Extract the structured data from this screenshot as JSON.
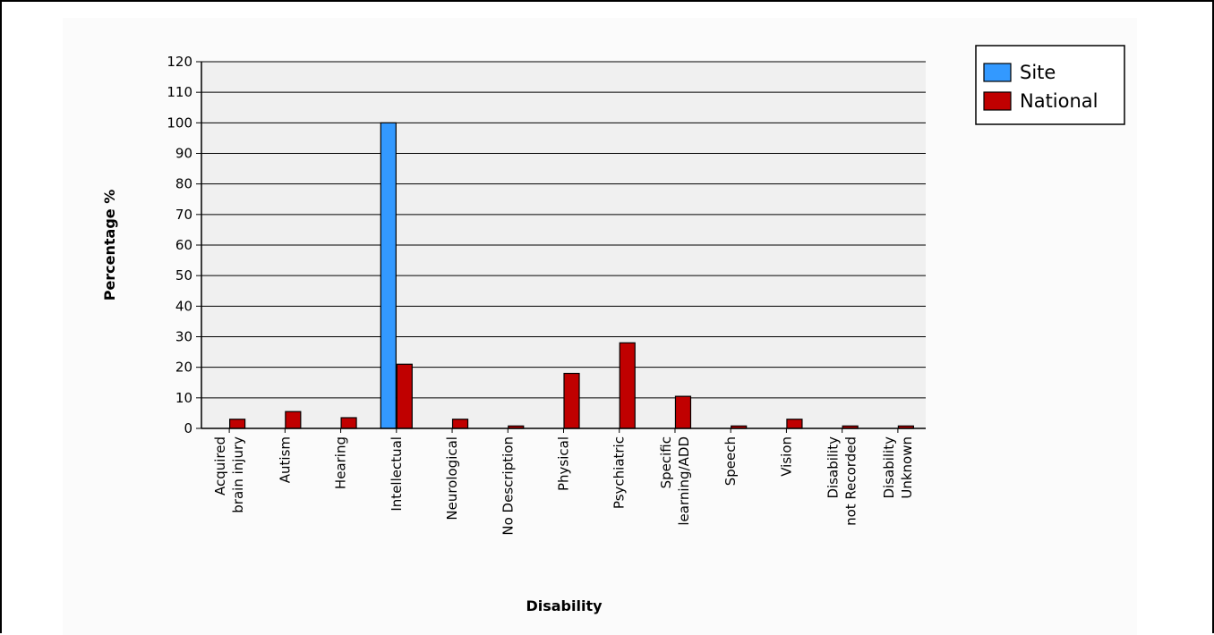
{
  "chart_data": {
    "type": "bar",
    "title": "",
    "xlabel": "Disability",
    "ylabel": "Percentage %",
    "ylim": [
      0,
      120
    ],
    "ytick_step": 10,
    "grid": true,
    "legend_position": "top-right",
    "categories": [
      [
        "Acquired",
        "brain injury"
      ],
      [
        "Autism"
      ],
      [
        "Hearing"
      ],
      [
        "Intellectual"
      ],
      [
        "Neurological"
      ],
      [
        "No Description"
      ],
      [
        "Physical"
      ],
      [
        "Psychiatric"
      ],
      [
        "Specific",
        "learning/ADD"
      ],
      [
        "Speech"
      ],
      [
        "Vision"
      ],
      [
        "Disability",
        "not Recorded"
      ],
      [
        "Disability",
        "Unknown"
      ]
    ],
    "series": [
      {
        "name": "Site",
        "color": "#3399ff",
        "values": [
          0,
          0,
          0,
          100,
          0,
          0,
          0,
          0,
          0,
          0,
          0,
          0,
          0
        ]
      },
      {
        "name": "National",
        "color": "#c00000",
        "values": [
          3,
          5.5,
          3.5,
          21,
          3,
          0.8,
          18,
          28,
          10.5,
          0.8,
          3,
          0.8,
          0.8
        ]
      }
    ]
  }
}
